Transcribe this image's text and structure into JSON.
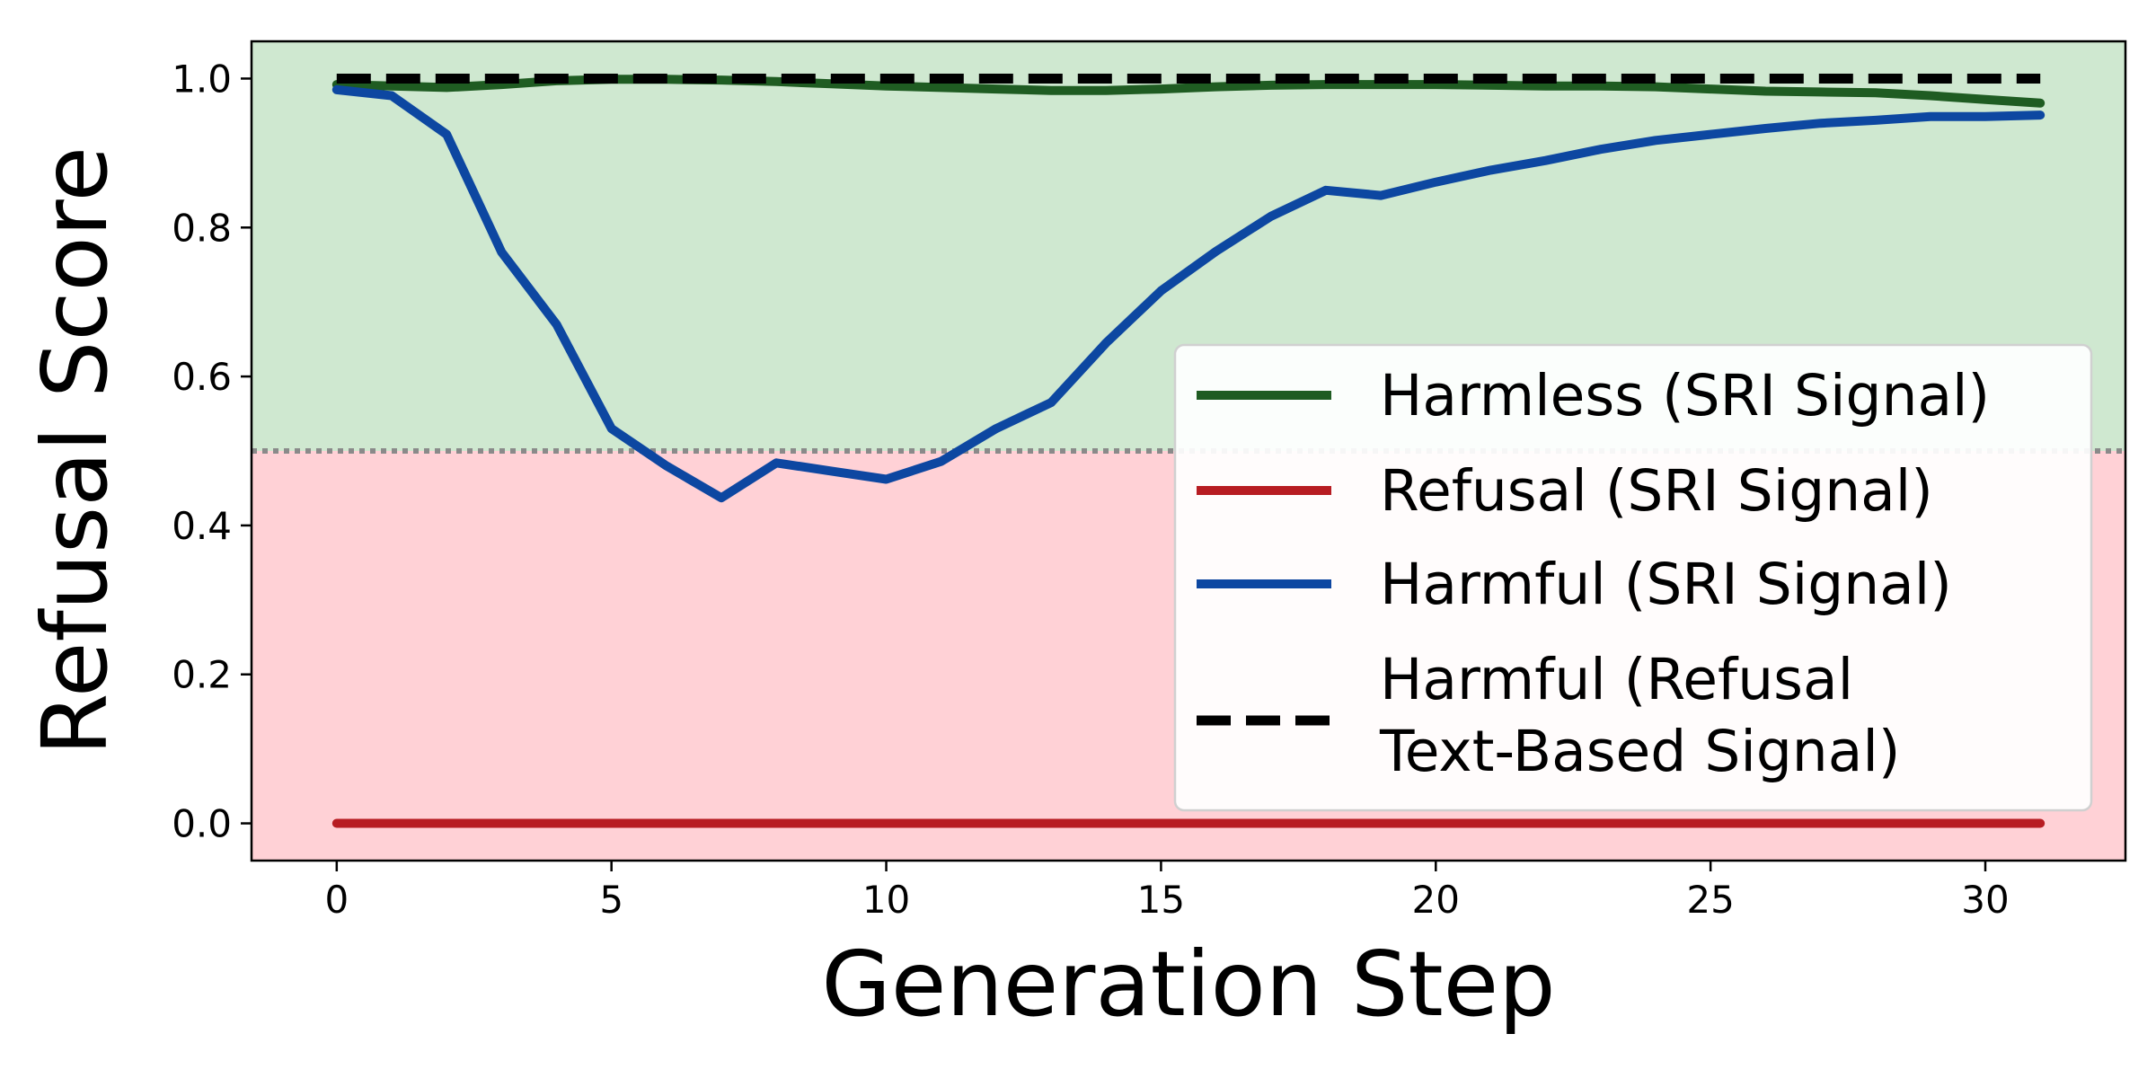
{
  "chart_data": {
    "type": "line",
    "xlabel": "Generation Step",
    "ylabel": "Refusal Score",
    "xlim": [
      -1.55,
      32.55
    ],
    "ylim": [
      -0.05,
      1.05
    ],
    "x_ticks": [
      0,
      5,
      10,
      15,
      20,
      25,
      30
    ],
    "x_tick_labels": [
      "0",
      "5",
      "10",
      "15",
      "20",
      "25",
      "30"
    ],
    "y_ticks": [
      0.0,
      0.2,
      0.4,
      0.6,
      0.8,
      1.0
    ],
    "y_tick_labels": [
      "0.0",
      "0.2",
      "0.4",
      "0.6",
      "0.8",
      "1.0"
    ],
    "threshold": 0.5,
    "regions": [
      {
        "from": 0.5,
        "to": 1.05,
        "color": "#cfe8d0"
      },
      {
        "from": -0.05,
        "to": 0.5,
        "color": "#ffd1d6"
      }
    ],
    "grid": false,
    "legend_position": "center-right",
    "x": [
      0,
      1,
      2,
      3,
      4,
      5,
      6,
      7,
      8,
      9,
      10,
      11,
      12,
      13,
      14,
      15,
      16,
      17,
      18,
      19,
      20,
      21,
      22,
      23,
      24,
      25,
      26,
      27,
      28,
      29,
      30,
      31
    ],
    "series": [
      {
        "name": "Harmless (SRI Signal)",
        "color": "#1f5c22",
        "style": "solid",
        "values": [
          0.992,
          0.99,
          0.988,
          0.992,
          0.997,
          0.999,
          0.999,
          0.998,
          0.996,
          0.993,
          0.99,
          0.988,
          0.986,
          0.984,
          0.984,
          0.986,
          0.989,
          0.991,
          0.992,
          0.992,
          0.992,
          0.991,
          0.99,
          0.99,
          0.989,
          0.986,
          0.983,
          0.982,
          0.981,
          0.977,
          0.972,
          0.967
        ]
      },
      {
        "name": "Refusal (SRI Signal)",
        "color": "#b71c22",
        "style": "solid",
        "values": [
          0,
          0,
          0,
          0,
          0,
          0,
          0,
          0,
          0,
          0,
          0,
          0,
          0,
          0,
          0,
          0,
          0,
          0,
          0,
          0,
          0,
          0,
          0,
          0,
          0,
          0,
          0,
          0,
          0,
          0,
          0,
          0
        ]
      },
      {
        "name": "Harmful (SRI Signal)",
        "color": "#0d47a1",
        "style": "solid",
        "values": [
          0.985,
          0.977,
          0.925,
          0.767,
          0.67,
          0.53,
          0.48,
          0.437,
          0.484,
          0.473,
          0.462,
          0.486,
          0.53,
          0.565,
          0.645,
          0.715,
          0.768,
          0.815,
          0.85,
          0.843,
          0.861,
          0.877,
          0.89,
          0.905,
          0.917,
          0.925,
          0.933,
          0.94,
          0.944,
          0.949,
          0.949,
          0.951
        ]
      },
      {
        "name_lines": [
          "Harmful (Refusal",
          "Text-Based Signal)"
        ],
        "color": "#000000",
        "style": "dashed",
        "values": [
          1,
          1,
          1,
          1,
          1,
          1,
          1,
          1,
          1,
          1,
          1,
          1,
          1,
          1,
          1,
          1,
          1,
          1,
          1,
          1,
          1,
          1,
          1,
          1,
          1,
          1,
          1,
          1,
          1,
          1,
          1,
          1
        ]
      }
    ]
  }
}
